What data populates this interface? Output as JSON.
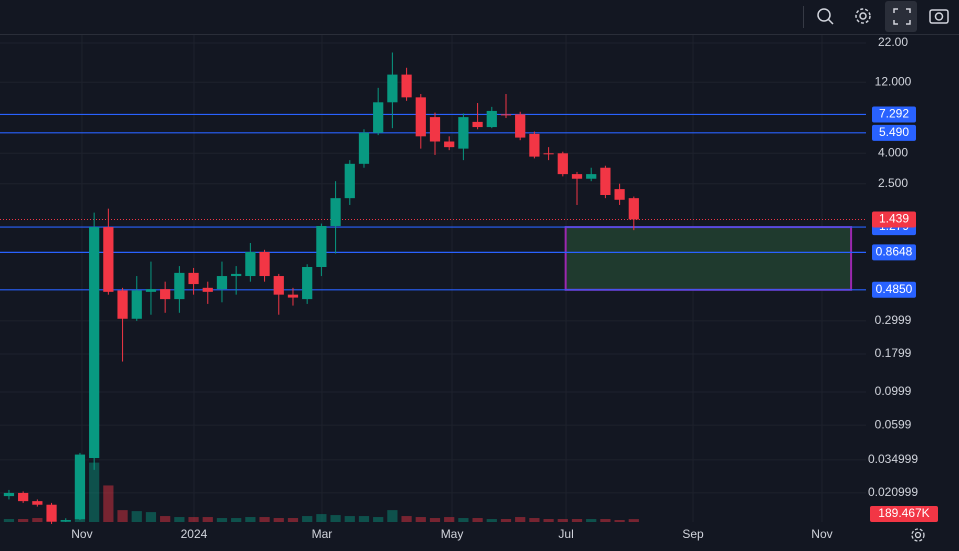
{
  "chart_data": {
    "type": "candlestick",
    "log_scale": true,
    "grid": true,
    "x": [
      0,
      1,
      2,
      3,
      4,
      5,
      6,
      7,
      8,
      9,
      10,
      11,
      12,
      13,
      14,
      15,
      16,
      17,
      18,
      19,
      20,
      21,
      22,
      23,
      24,
      25,
      26,
      27,
      28,
      29,
      30,
      31,
      32,
      33,
      34,
      35,
      36,
      37,
      38,
      39,
      40,
      41,
      42,
      43,
      44
    ],
    "open": [
      0.02,
      0.021,
      0.0185,
      0.0175,
      0.0135,
      0.014,
      0.036,
      1.279,
      0.48,
      0.31,
      0.47,
      0.49,
      0.42,
      0.63,
      0.5,
      0.49,
      0.6,
      0.6,
      0.87,
      0.6,
      0.45,
      0.42,
      0.69,
      1.3,
      2.0,
      3.4,
      5.5,
      8.8,
      13.5,
      9.5,
      7.0,
      4.8,
      4.3,
      6.5,
      6.0,
      7.3,
      7.3,
      5.4,
      4.0,
      4.0,
      2.9,
      2.7,
      3.2,
      2.3,
      2.0
    ],
    "high": [
      0.022,
      0.0215,
      0.019,
      0.018,
      0.0142,
      0.039,
      1.6,
      1.7,
      0.5,
      0.6,
      0.75,
      0.55,
      0.7,
      0.68,
      0.55,
      0.75,
      0.7,
      1.0,
      0.9,
      0.62,
      0.5,
      0.72,
      1.35,
      2.6,
      3.6,
      5.8,
      11,
      19,
      15,
      10,
      7.5,
      5.2,
      7.4,
      8.7,
      8.2,
      10,
      7.6,
      5.6,
      4.4,
      4.1,
      3.0,
      3.2,
      3.3,
      2.5,
      2.05
    ],
    "low": [
      0.019,
      0.018,
      0.017,
      0.013,
      0.0134,
      0.0138,
      0.03,
      0.45,
      0.16,
      0.3,
      0.33,
      0.34,
      0.34,
      0.45,
      0.39,
      0.4,
      0.45,
      0.55,
      0.55,
      0.33,
      0.38,
      0.39,
      0.6,
      0.85,
      1.8,
      3.2,
      5.3,
      5.9,
      9.0,
      4.3,
      3.9,
      4.2,
      3.6,
      5.8,
      5.9,
      6.9,
      4.9,
      3.7,
      3.6,
      2.8,
      1.8,
      2.6,
      2.0,
      1.8,
      1.22
    ],
    "close": [
      0.021,
      0.0185,
      0.0175,
      0.0135,
      0.0138,
      0.038,
      1.279,
      0.47,
      0.31,
      0.48,
      0.49,
      0.42,
      0.63,
      0.53,
      0.47,
      0.6,
      0.62,
      0.87,
      0.6,
      0.45,
      0.43,
      0.69,
      1.3,
      2.0,
      3.4,
      5.5,
      8.8,
      13.5,
      9.5,
      5.2,
      4.8,
      4.4,
      7.0,
      6.0,
      7.7,
      7.2,
      5.1,
      3.8,
      3.95,
      2.9,
      2.7,
      2.9,
      2.1,
      1.95,
      1.439
    ],
    "volume": [
      195000,
      195000,
      260000,
      130000,
      130000,
      4030000,
      3900000,
      2400000,
      780000,
      715000,
      650000,
      390000,
      325000,
      325000,
      325000,
      260000,
      260000,
      325000,
      325000,
      260000,
      260000,
      390000,
      520000,
      455000,
      390000,
      390000,
      325000,
      780000,
      390000,
      325000,
      260000,
      325000,
      260000,
      260000,
      195000,
      195000,
      325000,
      260000,
      195000,
      195000,
      195000,
      195000,
      195000,
      130000,
      189467
    ],
    "up_color": "#089981",
    "down_color": "#f23645",
    "xlim": [
      -0.63,
      60.35
    ],
    "xticks": [
      {
        "value": 5.14,
        "label": "Nov"
      },
      {
        "value": 13.03,
        "label": "2024"
      },
      {
        "value": 22.04,
        "label": "Mar"
      },
      {
        "value": 31.2,
        "label": "May"
      },
      {
        "value": 39.23,
        "label": "Jul"
      },
      {
        "value": 48.17,
        "label": "Sep"
      },
      {
        "value": 57.25,
        "label": "Nov"
      }
    ],
    "ylim": [
      0.0134,
      24.9
    ],
    "yticks": [
      {
        "value": 22,
        "label": "22.00"
      },
      {
        "value": 12,
        "label": "12.000"
      },
      {
        "value": 4,
        "label": "4.000"
      },
      {
        "value": 2.5,
        "label": "2.500"
      },
      0.2999,
      0.1799,
      0.0999,
      0.0599,
      0.034999,
      0.020999
    ],
    "volume_lim": [
      0,
      4400000
    ],
    "hlines": {
      "color": "#2962ff",
      "values": [
        7.292,
        {
          "value": 5.49,
          "label": "5.490"
        },
        1.279,
        0.8648,
        {
          "value": 0.485,
          "label": "0.4850"
        }
      ]
    },
    "last_price": 1.439,
    "last_price_color": "#f23645",
    "last_volume_label": {
      "value": 189467,
      "label": "189.467K"
    },
    "zone": {
      "xlim": [
        39.2,
        59.3
      ],
      "ylim": [
        1.279,
        0.485
      ],
      "fill": "#1f3a2e",
      "border": "#9c27b0"
    }
  }
}
